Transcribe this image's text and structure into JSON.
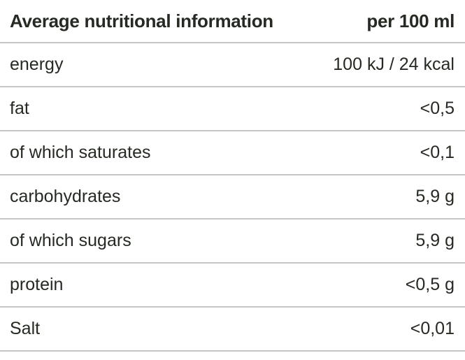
{
  "table": {
    "header": {
      "title": "Average nutritional information",
      "unit": "per 100 ml"
    },
    "rows": [
      {
        "label": "energy",
        "value": "100 kJ / 24 kcal"
      },
      {
        "label": "fat",
        "value": "<0,5"
      },
      {
        "label": "of which saturates",
        "value": "<0,1"
      },
      {
        "label": "carbohydrates",
        "value": "5,9 g"
      },
      {
        "label": "of which sugars",
        "value": "5,9 g"
      },
      {
        "label": "protein",
        "value": "<0,5 g"
      },
      {
        "label": "Salt",
        "value": "<0,01"
      }
    ],
    "colors": {
      "text": "#252a22",
      "divider": "#c6c6c6",
      "background": "#ffffff"
    }
  }
}
